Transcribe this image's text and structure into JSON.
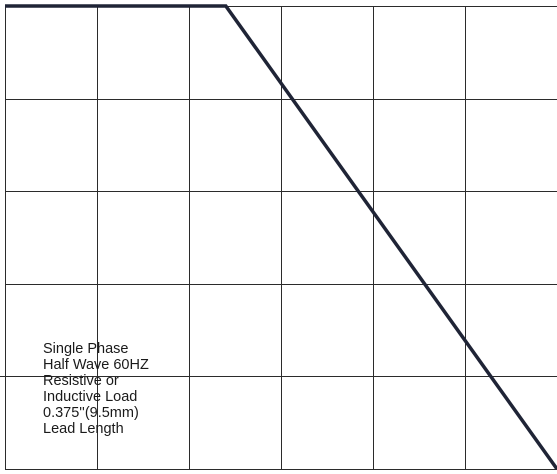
{
  "chart_data": {
    "type": "line",
    "title": "",
    "xlabel": "",
    "ylabel": "",
    "grid": true,
    "grid_columns": 6,
    "grid_rows": 5,
    "xlim": [
      0,
      6
    ],
    "ylim": [
      0,
      5
    ],
    "series": [
      {
        "x": [
          0,
          2.4,
          6
        ],
        "y": [
          5,
          5,
          0
        ]
      }
    ],
    "annotations": [
      "Single Phase",
      "Half Wave 60HZ",
      "Resistive or",
      "Inductive Load",
      "0.375''(9.5mm)",
      "Lead Length"
    ],
    "colors": {
      "grid": "#2b2b2b",
      "curve": "#1f2436",
      "text": "#1a1a1a"
    }
  }
}
